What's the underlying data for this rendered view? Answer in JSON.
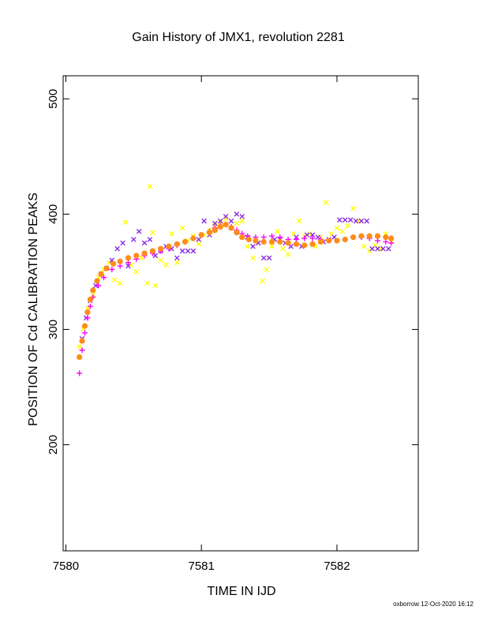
{
  "chart_data": {
    "type": "scatter",
    "title": "Gain History of JMX1, revolution 2281",
    "xlabel": "TIME IN IJD",
    "ylabel": "POSITION OF Cd CALIBRATION PEAKS",
    "footer": "oxborrow 12-Oct-2020 16:12",
    "xlim": [
      7579.98,
      7582.6
    ],
    "ylim": [
      108,
      520
    ],
    "xticks": [
      7580,
      7581,
      7582
    ],
    "xtick_labels": [
      "7580",
      "7581",
      "7582"
    ],
    "yticks": [
      200,
      300,
      400,
      500
    ],
    "ytick_labels": [
      "200",
      "300",
      "400",
      "500"
    ],
    "grid": false,
    "legend": "none",
    "colors": {
      "yellow": "#ffff00",
      "purple": "#8a2be2",
      "magenta": "#ff00ff",
      "orange": "#ff8c1a"
    },
    "series": [
      {
        "color": "#ffff00",
        "marker": "x",
        "points": [
          [
            7580.1,
            285
          ],
          [
            7580.13,
            300
          ],
          [
            7580.16,
            318
          ],
          [
            7580.2,
            330
          ],
          [
            7580.24,
            345
          ],
          [
            7580.28,
            352
          ],
          [
            7580.32,
            358
          ],
          [
            7580.36,
            343
          ],
          [
            7580.4,
            340
          ],
          [
            7580.44,
            393
          ],
          [
            7580.48,
            356
          ],
          [
            7580.52,
            350
          ],
          [
            7580.56,
            362
          ],
          [
            7580.6,
            340
          ],
          [
            7580.62,
            424
          ],
          [
            7580.64,
            384
          ],
          [
            7580.66,
            338
          ],
          [
            7580.7,
            360
          ],
          [
            7580.74,
            356
          ],
          [
            7580.78,
            383
          ],
          [
            7580.82,
            358
          ],
          [
            7580.86,
            388
          ],
          [
            7580.9,
            377
          ],
          [
            7580.94,
            381
          ],
          [
            7580.98,
            374
          ],
          [
            7581.02,
            382
          ],
          [
            7581.06,
            386
          ],
          [
            7581.1,
            390
          ],
          [
            7581.14,
            393
          ],
          [
            7581.18,
            396
          ],
          [
            7581.22,
            388
          ],
          [
            7581.26,
            392
          ],
          [
            7581.3,
            394
          ],
          [
            7581.34,
            372
          ],
          [
            7581.38,
            362
          ],
          [
            7581.42,
            375
          ],
          [
            7581.45,
            342
          ],
          [
            7581.48,
            352
          ],
          [
            7581.52,
            372
          ],
          [
            7581.56,
            385
          ],
          [
            7581.6,
            370
          ],
          [
            7581.64,
            365
          ],
          [
            7581.68,
            383
          ],
          [
            7581.72,
            394
          ],
          [
            7581.76,
            381
          ],
          [
            7581.8,
            383
          ],
          [
            7581.84,
            372
          ],
          [
            7581.88,
            380
          ],
          [
            7581.92,
            410
          ],
          [
            7581.96,
            383
          ],
          [
            7582.0,
            388
          ],
          [
            7582.04,
            385
          ],
          [
            7582.08,
            390
          ],
          [
            7582.12,
            405
          ],
          [
            7582.16,
            394
          ],
          [
            7582.2,
            372
          ],
          [
            7582.24,
            368
          ],
          [
            7582.28,
            373
          ],
          [
            7582.32,
            370
          ],
          [
            7582.36,
            383
          ],
          [
            7582.4,
            376
          ]
        ]
      },
      {
        "color": "#8a2be2",
        "marker": "x",
        "points": [
          [
            7580.12,
            292
          ],
          [
            7580.15,
            310
          ],
          [
            7580.18,
            325
          ],
          [
            7580.22,
            338
          ],
          [
            7580.26,
            348
          ],
          [
            7580.3,
            353
          ],
          [
            7580.34,
            360
          ],
          [
            7580.38,
            370
          ],
          [
            7580.42,
            375
          ],
          [
            7580.46,
            355
          ],
          [
            7580.5,
            378
          ],
          [
            7580.54,
            385
          ],
          [
            7580.58,
            375
          ],
          [
            7580.62,
            378
          ],
          [
            7580.66,
            364
          ],
          [
            7580.7,
            368
          ],
          [
            7580.74,
            372
          ],
          [
            7580.78,
            370
          ],
          [
            7580.82,
            362
          ],
          [
            7580.86,
            368
          ],
          [
            7580.9,
            368
          ],
          [
            7580.94,
            368
          ],
          [
            7580.98,
            378
          ],
          [
            7581.02,
            394
          ],
          [
            7581.06,
            382
          ],
          [
            7581.1,
            392
          ],
          [
            7581.14,
            394
          ],
          [
            7581.18,
            398
          ],
          [
            7581.22,
            394
          ],
          [
            7581.26,
            400
          ],
          [
            7581.3,
            398
          ],
          [
            7581.34,
            380
          ],
          [
            7581.38,
            372
          ],
          [
            7581.42,
            375
          ],
          [
            7581.46,
            362
          ],
          [
            7581.5,
            362
          ],
          [
            7581.54,
            378
          ],
          [
            7581.58,
            378
          ],
          [
            7581.62,
            375
          ],
          [
            7581.66,
            372
          ],
          [
            7581.7,
            380
          ],
          [
            7581.74,
            372
          ],
          [
            7581.78,
            382
          ],
          [
            7581.82,
            382
          ],
          [
            7581.86,
            380
          ],
          [
            7581.9,
            376
          ],
          [
            7581.94,
            378
          ],
          [
            7581.98,
            380
          ],
          [
            7582.02,
            395
          ],
          [
            7582.06,
            395
          ],
          [
            7582.1,
            395
          ],
          [
            7582.14,
            394
          ],
          [
            7582.18,
            394
          ],
          [
            7582.22,
            394
          ],
          [
            7582.26,
            370
          ],
          [
            7582.3,
            370
          ],
          [
            7582.34,
            370
          ],
          [
            7582.38,
            370
          ]
        ]
      },
      {
        "color": "#ff00ff",
        "marker": "+",
        "points": [
          [
            7580.1,
            262
          ],
          [
            7580.12,
            282
          ],
          [
            7580.14,
            297
          ],
          [
            7580.16,
            310
          ],
          [
            7580.18,
            320
          ],
          [
            7580.2,
            328
          ],
          [
            7580.24,
            338
          ],
          [
            7580.28,
            345
          ],
          [
            7580.34,
            352
          ],
          [
            7580.4,
            355
          ],
          [
            7580.46,
            358
          ],
          [
            7580.52,
            361
          ],
          [
            7580.58,
            364
          ],
          [
            7580.64,
            366
          ],
          [
            7580.7,
            368
          ],
          [
            7580.76,
            370
          ],
          [
            7580.82,
            373
          ],
          [
            7580.88,
            376
          ],
          [
            7580.94,
            379
          ],
          [
            7581.0,
            382
          ],
          [
            7581.06,
            385
          ],
          [
            7581.1,
            388
          ],
          [
            7581.14,
            390
          ],
          [
            7581.18,
            391
          ],
          [
            7581.22,
            389
          ],
          [
            7581.26,
            386
          ],
          [
            7581.3,
            383
          ],
          [
            7581.34,
            381
          ],
          [
            7581.4,
            380
          ],
          [
            7581.46,
            380
          ],
          [
            7581.52,
            381
          ],
          [
            7581.58,
            380
          ],
          [
            7581.64,
            378
          ],
          [
            7581.7,
            378
          ],
          [
            7581.76,
            379
          ],
          [
            7581.82,
            379
          ],
          [
            7581.88,
            378
          ],
          [
            7581.94,
            377
          ],
          [
            7582.0,
            377
          ],
          [
            7582.06,
            378
          ],
          [
            7582.12,
            380
          ],
          [
            7582.18,
            380
          ],
          [
            7582.24,
            379
          ],
          [
            7582.3,
            377
          ],
          [
            7582.36,
            376
          ],
          [
            7582.4,
            375
          ]
        ]
      },
      {
        "color": "#ff8c1a",
        "marker": "o",
        "points": [
          [
            7580.1,
            276
          ],
          [
            7580.12,
            290
          ],
          [
            7580.14,
            303
          ],
          [
            7580.16,
            315
          ],
          [
            7580.18,
            326
          ],
          [
            7580.2,
            334
          ],
          [
            7580.23,
            342
          ],
          [
            7580.26,
            348
          ],
          [
            7580.3,
            353
          ],
          [
            7580.35,
            357
          ],
          [
            7580.4,
            359
          ],
          [
            7580.46,
            362
          ],
          [
            7580.52,
            364
          ],
          [
            7580.58,
            366
          ],
          [
            7580.64,
            368
          ],
          [
            7580.7,
            370
          ],
          [
            7580.76,
            372
          ],
          [
            7580.82,
            374
          ],
          [
            7580.88,
            376
          ],
          [
            7580.94,
            379
          ],
          [
            7581.0,
            382
          ],
          [
            7581.06,
            384
          ],
          [
            7581.1,
            386
          ],
          [
            7581.14,
            389
          ],
          [
            7581.18,
            391
          ],
          [
            7581.22,
            388
          ],
          [
            7581.26,
            384
          ],
          [
            7581.3,
            380
          ],
          [
            7581.35,
            378
          ],
          [
            7581.4,
            377
          ],
          [
            7581.46,
            376
          ],
          [
            7581.52,
            376
          ],
          [
            7581.58,
            376
          ],
          [
            7581.64,
            375
          ],
          [
            7581.7,
            374
          ],
          [
            7581.76,
            373
          ],
          [
            7581.82,
            374
          ],
          [
            7581.88,
            376
          ],
          [
            7581.94,
            377
          ],
          [
            7582.0,
            377
          ],
          [
            7582.06,
            378
          ],
          [
            7582.12,
            380
          ],
          [
            7582.18,
            381
          ],
          [
            7582.24,
            381
          ],
          [
            7582.3,
            381
          ],
          [
            7582.36,
            380
          ],
          [
            7582.4,
            379
          ]
        ]
      }
    ]
  }
}
